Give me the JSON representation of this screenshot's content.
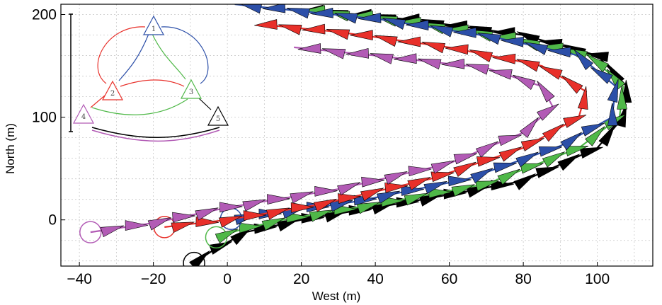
{
  "chart_data": {
    "type": "line",
    "xlabel": "West (m)",
    "ylabel": "North (m)",
    "xlim": [
      -45,
      115
    ],
    "ylim": [
      -45,
      210
    ],
    "x_ticks": [
      "−40",
      "−20",
      "0",
      "20",
      "40",
      "60",
      "80",
      "100"
    ],
    "x_tick_values": [
      -40,
      -20,
      0,
      20,
      40,
      60,
      80,
      100
    ],
    "y_ticks": [
      "0",
      "100",
      "200"
    ],
    "y_tick_values": [
      0,
      100,
      200
    ],
    "grid": true,
    "series": [
      {
        "color": "#000000",
        "start": [
          -9,
          -42
        ],
        "points": [
          [
            -9,
            -42
          ],
          [
            -4,
            -30
          ],
          [
            5,
            -12
          ],
          [
            20,
            0
          ],
          [
            50,
            18
          ],
          [
            80,
            38
          ],
          [
            100,
            70
          ],
          [
            107,
            100
          ],
          [
            108,
            130
          ],
          [
            100,
            160
          ],
          [
            80,
            180
          ],
          [
            50,
            195
          ],
          [
            20,
            205
          ]
        ]
      },
      {
        "color": "#4fb848",
        "start": [
          -3,
          -17
        ],
        "points": [
          [
            -3,
            -17
          ],
          [
            5,
            -8
          ],
          [
            15,
            0
          ],
          [
            40,
            15
          ],
          [
            70,
            35
          ],
          [
            95,
            70
          ],
          [
            106,
            100
          ],
          [
            107,
            130
          ],
          [
            98,
            160
          ],
          [
            75,
            178
          ],
          [
            45,
            195
          ],
          [
            20,
            205
          ]
        ]
      },
      {
        "color": "#2c4fa8",
        "start": [
          1,
          1
        ],
        "points": [
          [
            1,
            1
          ],
          [
            10,
            5
          ],
          [
            35,
            18
          ],
          [
            65,
            40
          ],
          [
            90,
            72
          ],
          [
            104,
            100
          ],
          [
            105,
            130
          ],
          [
            95,
            160
          ],
          [
            72,
            178
          ],
          [
            42,
            195
          ],
          [
            2,
            210
          ]
        ]
      },
      {
        "color": "#e8302a",
        "start": [
          -17,
          -7
        ],
        "points": [
          [
            -17,
            -7
          ],
          [
            0,
            0
          ],
          [
            25,
            15
          ],
          [
            55,
            40
          ],
          [
            80,
            70
          ],
          [
            95,
            100
          ],
          [
            97,
            125
          ],
          [
            85,
            150
          ],
          [
            60,
            168
          ],
          [
            30,
            183
          ],
          [
            10,
            190
          ]
        ]
      },
      {
        "color": "#b25bb5",
        "start": [
          -37,
          -12
        ],
        "points": [
          [
            -37,
            -12
          ],
          [
            -20,
            -3
          ],
          [
            0,
            12
          ],
          [
            30,
            30
          ],
          [
            60,
            55
          ],
          [
            80,
            85
          ],
          [
            88,
            110
          ],
          [
            85,
            130
          ],
          [
            70,
            148
          ],
          [
            40,
            160
          ],
          [
            18,
            168
          ]
        ]
      }
    ]
  },
  "inset": {
    "nodes": [
      {
        "label": "1",
        "color": "#2c4fa8"
      },
      {
        "label": "2",
        "color": "#e8302a"
      },
      {
        "label": "3",
        "color": "#4fb848"
      },
      {
        "label": "4",
        "color": "#b25bb5"
      },
      {
        "label": "5",
        "color": "#000000"
      }
    ]
  }
}
